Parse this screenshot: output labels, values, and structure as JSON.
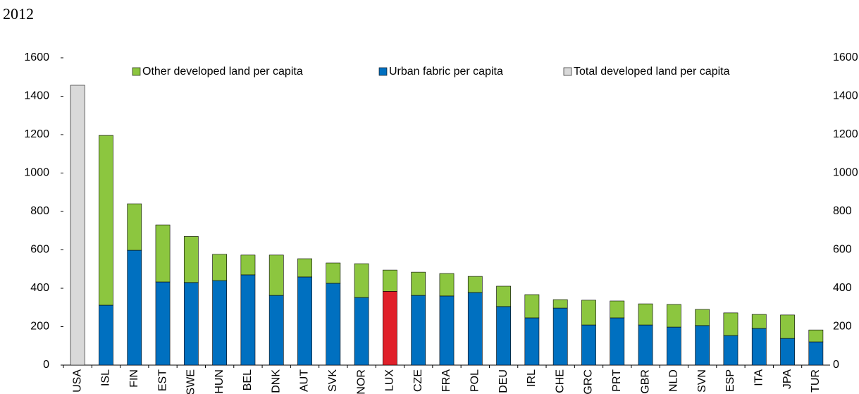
{
  "chart_data": {
    "type": "stacked_bar",
    "title": "2012",
    "categories": [
      "USA",
      "ISL",
      "FIN",
      "EST",
      "SWE",
      "HUN",
      "BEL",
      "DNK",
      "AUT",
      "SVK",
      "NOR",
      "LUX",
      "CZE",
      "FRA",
      "POL",
      "DEU",
      "IRL",
      "CHE",
      "GRC",
      "PRT",
      "GBR",
      "NLD",
      "SVN",
      "ESP",
      "ITA",
      "JPA",
      "TUR"
    ],
    "series": [
      {
        "name": "Urban fabric per capita",
        "color": "#0070c0",
        "values": [
          null,
          312,
          598,
          433,
          430,
          440,
          470,
          363,
          459,
          426,
          352,
          384,
          363,
          360,
          378,
          305,
          246,
          297,
          209,
          246,
          209,
          198,
          206,
          154,
          191,
          139,
          121
        ]
      },
      {
        "name": "Other developed land per capita",
        "color": "#8cc63f",
        "values": [
          null,
          884,
          242,
          297,
          240,
          137,
          103,
          210,
          95,
          106,
          176,
          111,
          121,
          117,
          84,
          106,
          121,
          44,
          129,
          88,
          110,
          118,
          84,
          118,
          73,
          122,
          62
        ]
      },
      {
        "name": "Total developed land per capita",
        "color": "#d9d9d9",
        "values": [
          1457,
          null,
          null,
          null,
          null,
          null,
          null,
          null,
          null,
          null,
          null,
          null,
          null,
          null,
          null,
          null,
          null,
          null,
          null,
          null,
          null,
          null,
          null,
          null,
          null,
          null,
          null
        ]
      }
    ],
    "legend_order": [
      1,
      0,
      2
    ],
    "highlight": {
      "category": "LUX",
      "color": "#e0202a"
    },
    "ylim": [
      0,
      1600
    ],
    "yticks": [
      0,
      200,
      400,
      600,
      800,
      1000,
      1200,
      1400,
      1600
    ],
    "y2lim": [
      0,
      1600
    ],
    "y2ticks": [
      0,
      200,
      400,
      600,
      800,
      1000,
      1200,
      1400,
      1600
    ],
    "grid": false
  }
}
